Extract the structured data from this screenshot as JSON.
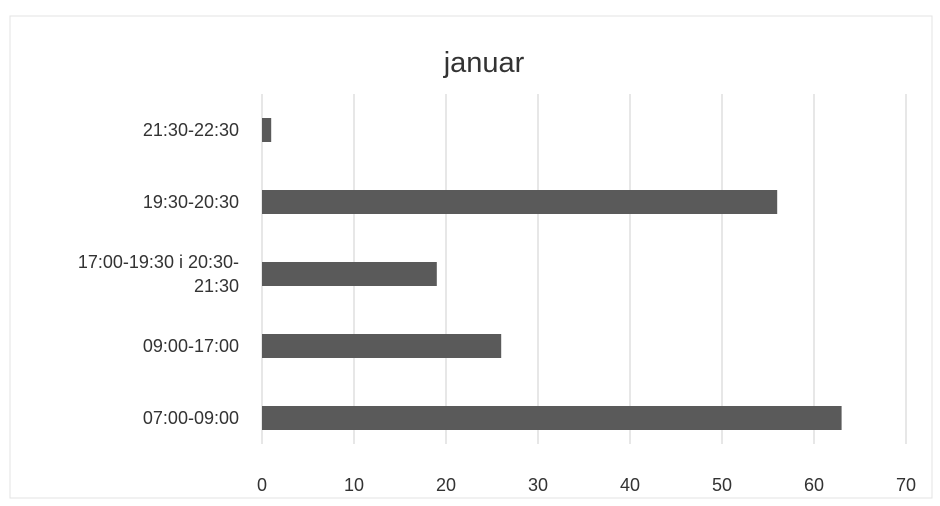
{
  "chart_data": {
    "type": "bar",
    "orientation": "horizontal",
    "title": "januar",
    "xlabel": "",
    "ylabel": "",
    "categories": [
      [
        "21:30-22:30"
      ],
      [
        "19:30-20:30"
      ],
      [
        "17:00-19:30 i 20:30-",
        "21:30"
      ],
      [
        "09:00-17:00"
      ],
      [
        "07:00-09:00"
      ]
    ],
    "values": [
      1,
      56,
      19,
      26,
      63
    ],
    "xlim": [
      0,
      70
    ],
    "xticks": [
      0,
      10,
      20,
      30,
      40,
      50,
      60,
      70
    ],
    "grid": true,
    "legend": "none",
    "colors": {
      "bar": "#5a5a5a",
      "grid": "#cfcfcf",
      "text": "#333333",
      "frame": "#e3e3e3"
    }
  }
}
